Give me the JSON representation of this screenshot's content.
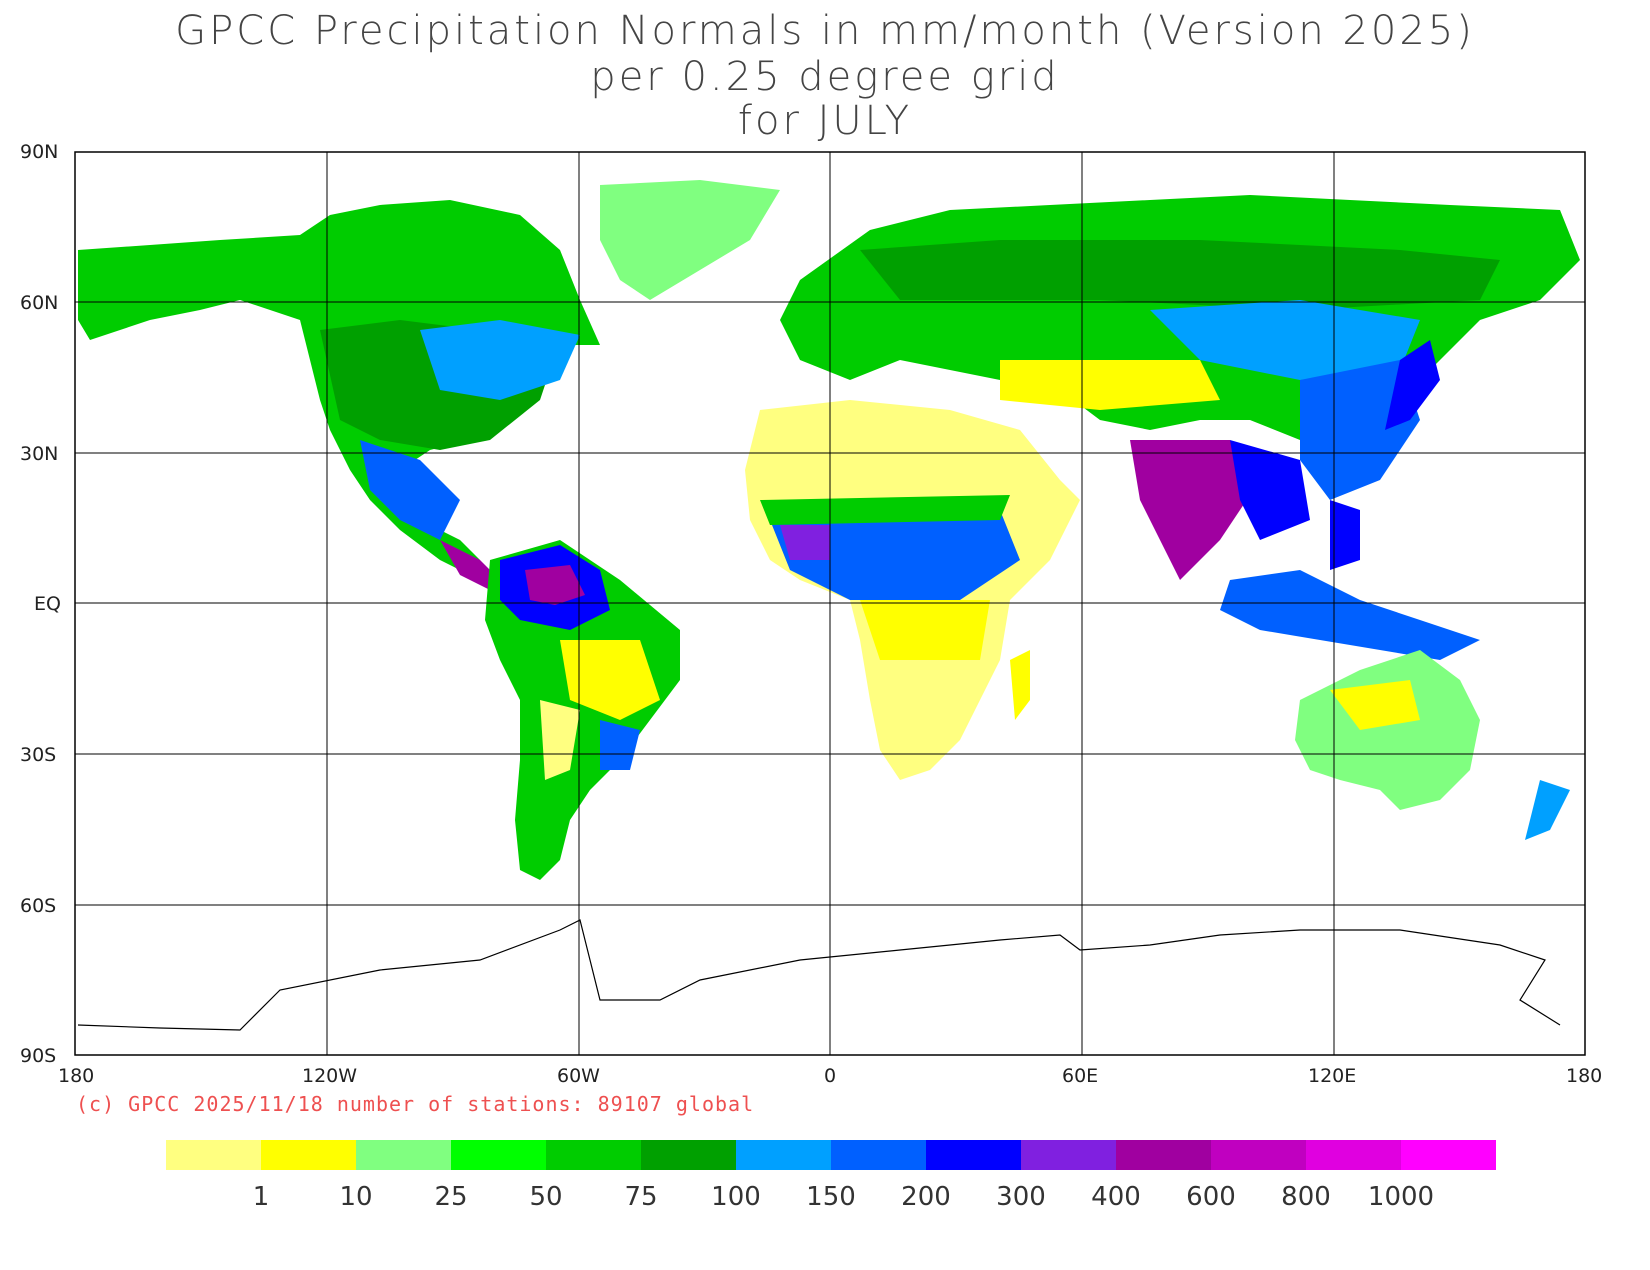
{
  "title": {
    "line1": "GPCC Precipitation Normals in mm/month (Version 2025)",
    "line2": "per 0.25 degree grid",
    "line3": "for JULY"
  },
  "axes": {
    "lat_labels": [
      "90N",
      "60N",
      "30N",
      "EQ",
      "30S",
      "60S",
      "90S"
    ],
    "lon_labels": [
      "180",
      "120W",
      "60W",
      "0",
      "60E",
      "120E",
      "180"
    ]
  },
  "copyright": "(c) GPCC 2025/11/18 number of stations: 89107 global",
  "legend": {
    "colors": [
      "#ffff80",
      "#ffff00",
      "#80ff80",
      "#00ff00",
      "#00cc00",
      "#00a000",
      "#00a0ff",
      "#0060ff",
      "#0000ff",
      "#8020e0",
      "#a000a0",
      "#c000c0",
      "#e000e0",
      "#ff00ff"
    ],
    "labels": [
      "1",
      "10",
      "25",
      "50",
      "75",
      "100",
      "150",
      "200",
      "300",
      "400",
      "600",
      "800",
      "1000"
    ]
  },
  "regions": [
    {
      "name": "north-america",
      "color": "#00cc00"
    },
    {
      "name": "greenland",
      "color": "#80ff80"
    },
    {
      "name": "eurasia",
      "color": "#00cc00"
    },
    {
      "name": "sahara",
      "color": "#ffff80"
    },
    {
      "name": "africa-sahel",
      "color": "#0060ff"
    },
    {
      "name": "south-america",
      "color": "#00cc00"
    },
    {
      "name": "amazon",
      "color": "#0000ff"
    },
    {
      "name": "australia",
      "color": "#80ff80"
    },
    {
      "name": "india-monsoon",
      "color": "#a000a0"
    },
    {
      "name": "east-asia",
      "color": "#0060ff"
    },
    {
      "name": "antarctica-outline",
      "color": "#000000"
    }
  ]
}
